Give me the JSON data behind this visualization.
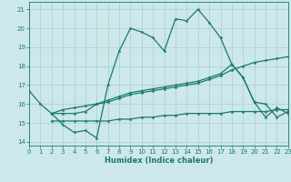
{
  "xlabel": "Humidex (Indice chaleur)",
  "xlim": [
    0,
    23
  ],
  "ylim": [
    13.8,
    21.4
  ],
  "yticks": [
    14,
    15,
    16,
    17,
    18,
    19,
    20,
    21
  ],
  "xticks": [
    0,
    1,
    2,
    3,
    4,
    5,
    6,
    7,
    8,
    9,
    10,
    11,
    12,
    13,
    14,
    15,
    16,
    17,
    18,
    19,
    20,
    21,
    22,
    23
  ],
  "bg_color": "#cce8ea",
  "line_color": "#1a7a6e",
  "grid_color": "#aacccc",
  "curves": [
    {
      "x": [
        0,
        1,
        2,
        3,
        4,
        5,
        6,
        7,
        8,
        9,
        10,
        11,
        12,
        13,
        14,
        15,
        16,
        17,
        18,
        19,
        20,
        21,
        22,
        23
      ],
      "y": [
        16.7,
        16.0,
        15.5,
        14.9,
        14.5,
        14.6,
        14.2,
        17.0,
        18.8,
        20.0,
        19.8,
        19.5,
        18.8,
        20.5,
        20.4,
        21.0,
        20.3,
        19.5,
        18.1,
        17.4,
        16.1,
        15.3,
        15.8,
        15.5
      ]
    },
    {
      "x": [
        2,
        3,
        4,
        5,
        6,
        7,
        8,
        9,
        10,
        11,
        12,
        13,
        14,
        15,
        16,
        17,
        18,
        19,
        20,
        21,
        22,
        23
      ],
      "y": [
        15.5,
        15.5,
        15.5,
        15.6,
        16.0,
        16.2,
        16.4,
        16.6,
        16.7,
        16.8,
        16.9,
        17.0,
        17.1,
        17.2,
        17.4,
        17.6,
        18.1,
        17.4,
        16.1,
        16.0,
        15.3,
        15.6
      ]
    },
    {
      "x": [
        2,
        3,
        4,
        5,
        6,
        7,
        8,
        9,
        10,
        11,
        12,
        13,
        14,
        15,
        16,
        17,
        18,
        19,
        20,
        21,
        22,
        23
      ],
      "y": [
        15.5,
        15.7,
        15.8,
        15.9,
        16.0,
        16.1,
        16.3,
        16.5,
        16.6,
        16.7,
        16.8,
        16.9,
        17.0,
        17.1,
        17.3,
        17.5,
        17.8,
        18.0,
        18.2,
        18.3,
        18.4,
        18.5
      ]
    },
    {
      "x": [
        2,
        3,
        4,
        5,
        6,
        7,
        8,
        9,
        10,
        11,
        12,
        13,
        14,
        15,
        16,
        17,
        18,
        19,
        20,
        21,
        22,
        23
      ],
      "y": [
        15.1,
        15.1,
        15.1,
        15.1,
        15.1,
        15.1,
        15.2,
        15.2,
        15.3,
        15.3,
        15.4,
        15.4,
        15.5,
        15.5,
        15.5,
        15.5,
        15.6,
        15.6,
        15.6,
        15.6,
        15.7,
        15.7
      ]
    }
  ]
}
